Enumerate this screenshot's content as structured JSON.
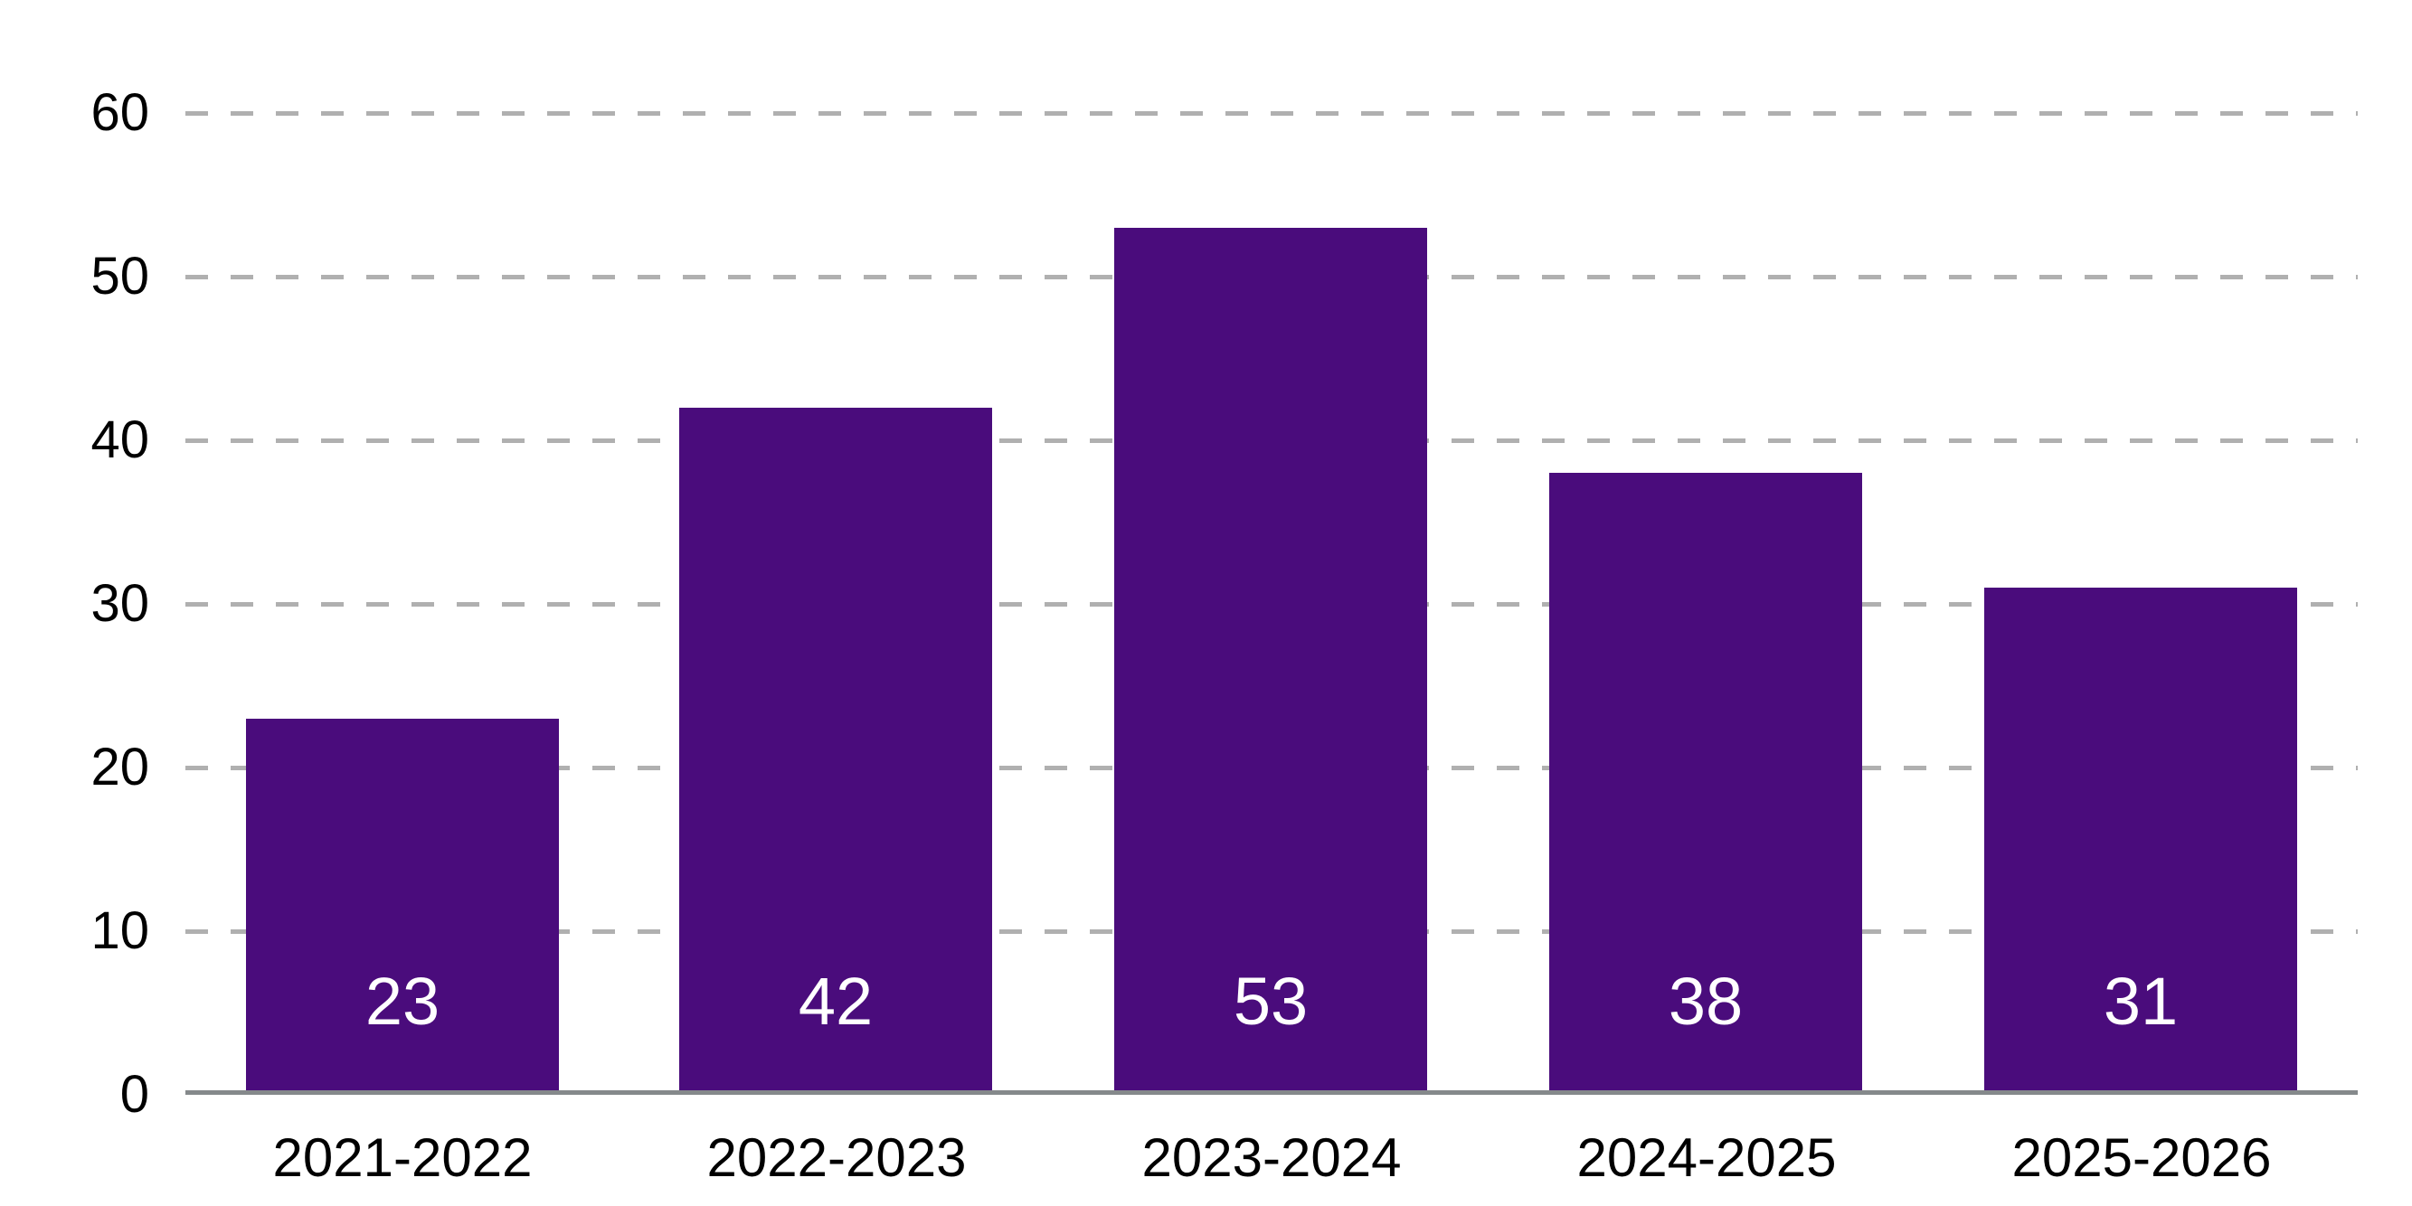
{
  "chart_data": {
    "type": "bar",
    "categories": [
      "2021-2022",
      "2022-2023",
      "2023-2024",
      "2024-2025",
      "2025-2026"
    ],
    "values": [
      23,
      42,
      53,
      38,
      31
    ],
    "yticks": [
      60,
      50,
      40,
      30,
      20,
      10,
      0
    ],
    "ylim": [
      0,
      60
    ],
    "grid": {
      "horizontal": true,
      "style": "dashed",
      "zero_line": "solid"
    },
    "legend": "none",
    "value_label_position": "inside-bottom",
    "colors": {
      "bar": "#4a0c7c",
      "value_label": "#ffffff",
      "gridline": "#b0b0b0",
      "axis_line": "#85898b",
      "tick_label": "#000000",
      "background": "#ffffff"
    }
  }
}
